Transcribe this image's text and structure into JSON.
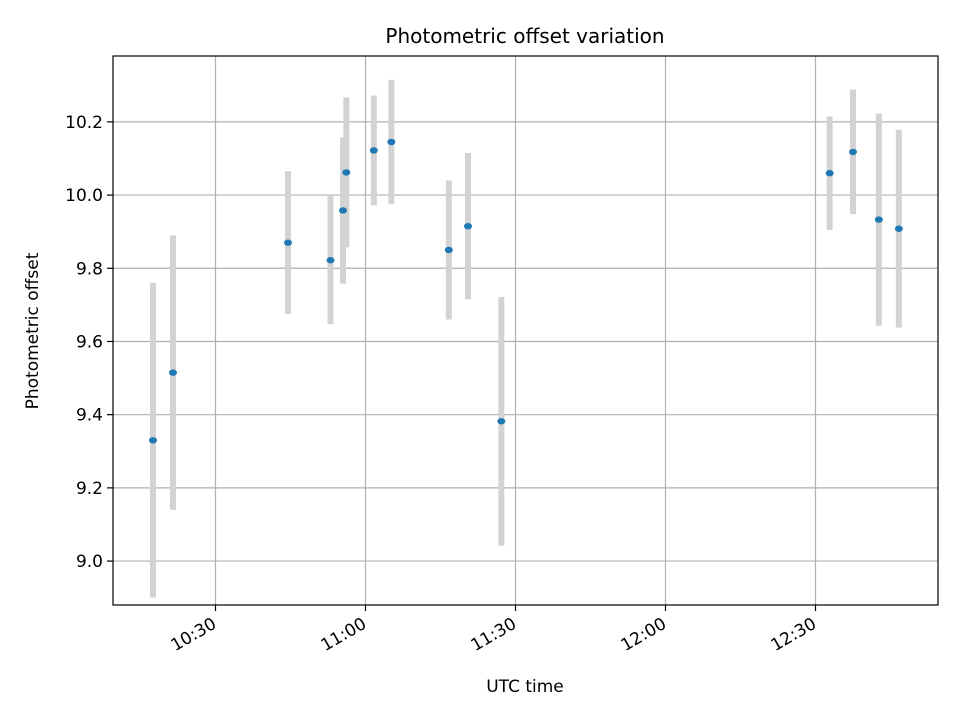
{
  "chart_data": {
    "type": "scatter",
    "title": "Photometric offset variation",
    "xlabel": "UTC time",
    "ylabel": "Photometric offset",
    "x_ticks": [
      "10:30",
      "11:00",
      "11:30",
      "12:00",
      "12:30"
    ],
    "y_ticks": [
      "9.0",
      "9.2",
      "9.4",
      "9.6",
      "9.8",
      "10.0",
      "10.2"
    ],
    "xlim": [
      "10:09:30",
      "12:54:30"
    ],
    "ylim": [
      8.88,
      10.38
    ],
    "grid": true,
    "point_color": "#1f77b4",
    "errorbar_color": "#d3d3d3",
    "series": [
      {
        "points": [
          {
            "x": "10:17:30",
            "y": 9.33,
            "err": 0.43
          },
          {
            "x": "10:21:30",
            "y": 9.515,
            "err": 0.375
          },
          {
            "x": "10:44:30",
            "y": 9.87,
            "err": 0.195
          },
          {
            "x": "10:53:00",
            "y": 9.822,
            "err": 0.175
          },
          {
            "x": "10:55:30",
            "y": 9.958,
            "err": 0.2
          },
          {
            "x": "10:56:10",
            "y": 10.062,
            "err": 0.205
          },
          {
            "x": "11:01:40",
            "y": 10.122,
            "err": 0.15
          },
          {
            "x": "11:05:10",
            "y": 10.145,
            "err": 0.17
          },
          {
            "x": "11:16:40",
            "y": 9.85,
            "err": 0.19
          },
          {
            "x": "11:20:30",
            "y": 9.915,
            "err": 0.2
          },
          {
            "x": "11:27:10",
            "y": 9.382,
            "err": 0.34
          },
          {
            "x": "12:32:50",
            "y": 10.06,
            "err": 0.155
          },
          {
            "x": "12:37:30",
            "y": 10.118,
            "err": 0.17
          },
          {
            "x": "12:42:40",
            "y": 9.933,
            "err": 0.29
          },
          {
            "x": "12:46:40",
            "y": 9.908,
            "err": 0.27
          }
        ]
      }
    ]
  }
}
